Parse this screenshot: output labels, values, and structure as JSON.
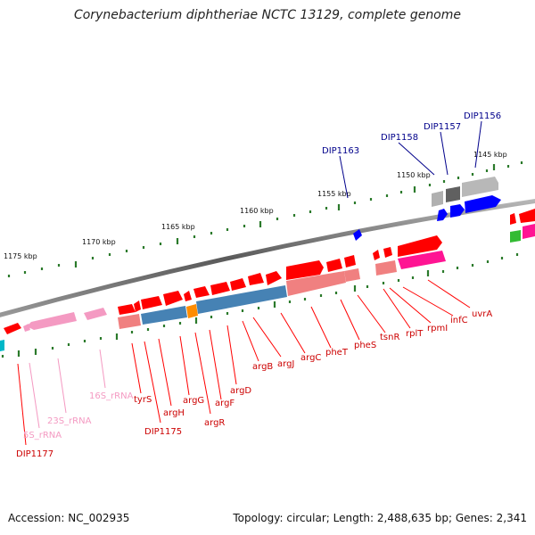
{
  "title": "Corynebacterium diphtheriae NCTC 13129, complete genome",
  "footer": {
    "accession": "Accession: NC_002935",
    "stats": "Topology: circular; Length: 2,488,635 bp; Genes: 2,341"
  },
  "scale_labels": [
    "1145 kbp",
    "1150 kbp",
    "1155 kbp",
    "1160 kbp",
    "1165 kbp",
    "1170 kbp",
    "1175 kbp"
  ],
  "colors": {
    "backbone": "#808080",
    "cds_red": "#ff0000",
    "dark_red_label": "#cc0000",
    "salmon": "#f08080",
    "pink_rrna": "#f49ac2",
    "magenta": "#ff1493",
    "steel_blue": "#4682b4",
    "blue": "#0000ff",
    "gray": "#b0b0b0",
    "dark_gray": "#606060",
    "orange": "#ff8c00",
    "green": "#33bb33",
    "cyan": "#00b8c8",
    "tick_green": "#2b7a2b",
    "navy_label": "#00008b"
  },
  "gene_labels": {
    "top": [
      "DIP1156",
      "DIP1157",
      "DIP1158",
      "DIP1163"
    ],
    "red": [
      "uvrA",
      "infC",
      "rpmI",
      "rplT",
      "tsnR",
      "pheS",
      "pheT",
      "argC",
      "argJ",
      "argB",
      "argD",
      "argF",
      "argR",
      "argG",
      "argH",
      "DIP1175",
      "tyrS",
      "DIP1177"
    ],
    "pink": [
      "16S_rRNA",
      "23S_rRNA",
      "5S_rRNA"
    ]
  }
}
